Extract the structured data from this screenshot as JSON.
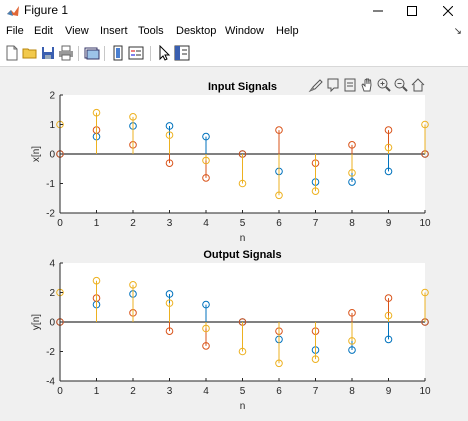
{
  "window": {
    "title": "Figure 1"
  },
  "menu": [
    "File",
    "Edit",
    "View",
    "Insert",
    "Tools",
    "Desktop",
    "Window",
    "Help"
  ],
  "toolbar_icons": [
    "new-figure-icon",
    "open-file-icon",
    "save-icon",
    "print-icon",
    "link-plot-icon",
    "insert-colorbar-icon",
    "insert-legend-icon",
    "edit-plot-icon",
    "property-inspector-icon"
  ],
  "axes_toolbar_icons": [
    "brush-icon",
    "data-tips-icon",
    "rotate-icon",
    "pan-icon",
    "zoom-in-icon",
    "zoom-out-icon",
    "home-icon"
  ],
  "colors": {
    "series1": "#0072bd",
    "series2": "#d95319",
    "series3": "#edb120"
  },
  "chart_data": [
    {
      "type": "stem",
      "title": "Input Signals",
      "xlabel": "n",
      "ylabel": "x[n]",
      "xlim": [
        0,
        10
      ],
      "ylim": [
        -2,
        2
      ],
      "xticks": [
        0,
        1,
        2,
        3,
        4,
        5,
        6,
        7,
        8,
        9,
        10
      ],
      "yticks": [
        -2,
        -1,
        0,
        1,
        2
      ],
      "x": [
        0,
        1,
        2,
        3,
        4,
        5,
        6,
        7,
        8,
        9,
        10
      ],
      "series": [
        {
          "values": [
            0,
            0.59,
            0.95,
            0.95,
            0.59,
            0,
            -0.59,
            -0.95,
            -0.95,
            -0.59,
            0
          ]
        },
        {
          "values": [
            0,
            0.81,
            0.31,
            -0.31,
            -0.81,
            0,
            0.81,
            -0.31,
            0.31,
            0.81,
            0
          ]
        },
        {
          "values": [
            1,
            1.4,
            1.26,
            0.64,
            -0.22,
            -1,
            -1.4,
            -1.26,
            -0.64,
            0.22,
            1
          ]
        }
      ]
    },
    {
      "type": "stem",
      "title": "Output Signals",
      "xlabel": "n",
      "ylabel": "y[n]",
      "xlim": [
        0,
        10
      ],
      "ylim": [
        -4,
        4
      ],
      "xticks": [
        0,
        1,
        2,
        3,
        4,
        5,
        6,
        7,
        8,
        9,
        10
      ],
      "yticks": [
        -4,
        -2,
        0,
        2,
        4
      ],
      "x": [
        0,
        1,
        2,
        3,
        4,
        5,
        6,
        7,
        8,
        9,
        10
      ],
      "series": [
        {
          "values": [
            0,
            1.18,
            1.9,
            1.9,
            1.18,
            0,
            -1.18,
            -1.9,
            -1.9,
            -1.18,
            0
          ]
        },
        {
          "values": [
            0,
            1.62,
            0.62,
            -0.62,
            -1.62,
            0,
            -0.62,
            -0.62,
            0.62,
            1.62,
            0
          ]
        },
        {
          "values": [
            2,
            2.8,
            2.52,
            1.28,
            -0.44,
            -2,
            -2.8,
            -2.52,
            -1.28,
            0.44,
            2
          ]
        }
      ]
    }
  ]
}
